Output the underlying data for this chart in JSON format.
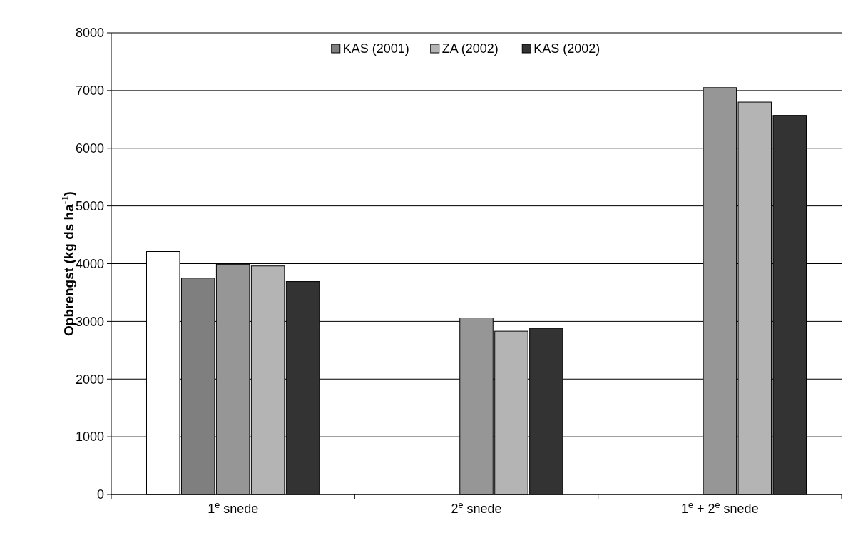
{
  "chart_data": {
    "type": "bar",
    "ylabel": "Opbrengst (kg ds ha$^{-1}$)",
    "categories": [
      "1$^{e}$ snede",
      "2$^{e}$ snede",
      "1$^{e}$ + 2$^{e}$ snede"
    ],
    "series": [
      {
        "color": "#ffffff",
        "values": [
          4210,
          null,
          null
        ]
      },
      {
        "name": "KAS (2001)",
        "color": "#7f7f7f",
        "values": [
          3750,
          null,
          null
        ]
      },
      {
        "color": "#969696",
        "values": [
          3990,
          3060,
          7050
        ]
      },
      {
        "name": "ZA (2002)",
        "color": "#b4b4b4",
        "values": [
          3960,
          2830,
          6800
        ]
      },
      {
        "name": "KAS (2002)",
        "color": "#333333",
        "values": [
          3690,
          2880,
          6570
        ]
      }
    ],
    "ylim": [
      0,
      8000
    ],
    "yticks": [
      0,
      1000,
      2000,
      3000,
      4000,
      5000,
      6000,
      7000,
      8000
    ],
    "grid": "y",
    "legend": "top"
  }
}
